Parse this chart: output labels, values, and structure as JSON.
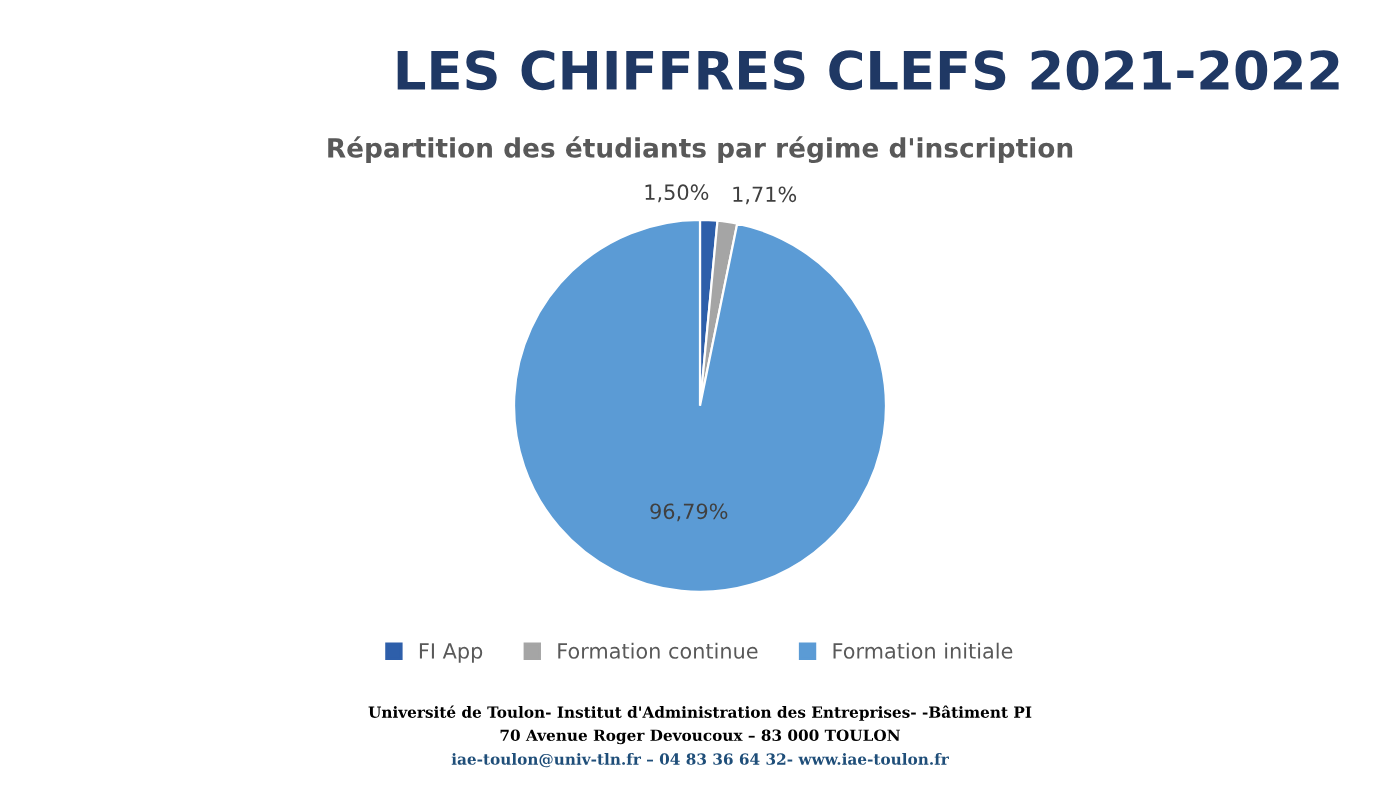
{
  "chart_data": {
    "type": "pie",
    "title": "LES CHIFFRES CLEFS 2021-2022",
    "subtitle": "Répartition des étudiants par régime d'inscription",
    "categories": [
      "FI App",
      "Formation continue",
      "Formation initiale"
    ],
    "values": [
      1.5,
      1.71,
      96.79
    ],
    "value_labels": [
      "1,50%",
      "1,71%",
      "96,79%"
    ],
    "colors": [
      "#2e5faa",
      "#a5a5a5",
      "#5b9bd5"
    ],
    "legend": "bottom",
    "annotations": [
      "Université de Toulon- Institut d'Administration des Entreprises- -Bâtiment PI",
      "70 Avenue Roger Devoucoux – 83 000 TOULON",
      "iae-toulon@univ-tln.fr – 04 83 36 64 32- www.iae-toulon.fr"
    ]
  }
}
